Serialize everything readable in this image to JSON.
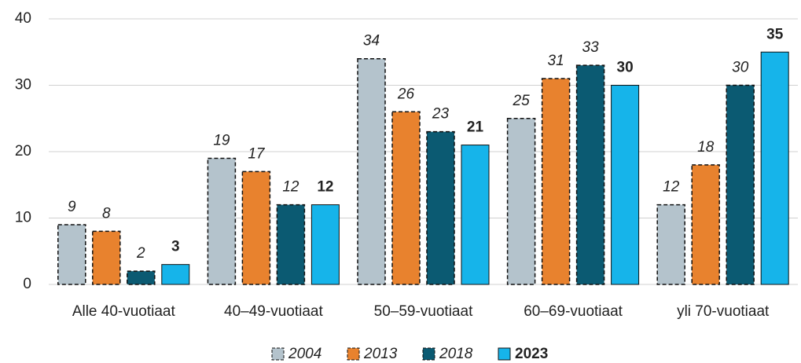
{
  "chart_data": {
    "type": "bar",
    "categories": [
      "Alle 40-vuotiaat",
      "40–49-vuotiaat",
      "50–59-vuotiaat",
      "60–69-vuotiaat",
      "yli 70-vuotiaat"
    ],
    "series": [
      {
        "name": "2004",
        "color": "#b4c3cc",
        "border": "dashed",
        "label_style": "italic",
        "values": [
          9,
          19,
          34,
          25,
          12
        ]
      },
      {
        "name": "2013",
        "color": "#e8822e",
        "border": "dashed",
        "label_style": "italic",
        "values": [
          8,
          17,
          26,
          31,
          18
        ]
      },
      {
        "name": "2018",
        "color": "#0b5a72",
        "border": "dashed",
        "label_style": "italic",
        "values": [
          2,
          12,
          23,
          33,
          30
        ]
      },
      {
        "name": "2023",
        "color": "#16b4ea",
        "border": "solid",
        "label_style": "bold",
        "values": [
          3,
          12,
          21,
          30,
          35
        ]
      }
    ],
    "ylim": [
      0,
      40
    ],
    "yticks": [
      0,
      10,
      20,
      30,
      40
    ],
    "grid": true,
    "legend": "bottom"
  }
}
